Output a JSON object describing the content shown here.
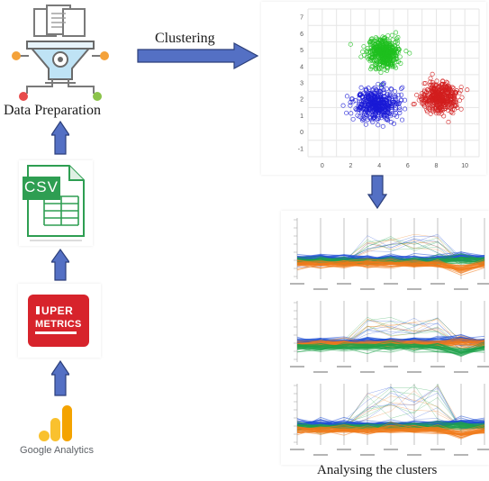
{
  "labels": {
    "data_preparation": "Data Preparation",
    "clustering": "Clustering",
    "analysing": "Analysing the clusters"
  },
  "sources": {
    "csv": "CSV",
    "supermetrics_line1": "UPER",
    "supermetrics_line2": "METRICS",
    "google_analytics": "Google Analytics"
  },
  "colors": {
    "arrow_fill": "#5470c4",
    "arrow_stroke": "#2c3f7a",
    "cluster_green": "#1fbf1f",
    "cluster_blue": "#1a1ad6",
    "cluster_red": "#d21e1e",
    "csv_green": "#2e9e52",
    "supermetrics_red": "#d7232b",
    "ga_orange": "#f4a300",
    "ga_yellow": "#f9c12e"
  },
  "icons": [
    "funnel-gear-icon",
    "csv-file-icon",
    "supermetrics-logo",
    "google-analytics-icon"
  ],
  "chart_data": {
    "type": "scatter",
    "xticks": [
      "0",
      "2",
      "4",
      "6",
      "8",
      "10"
    ],
    "yticks": [
      "7",
      "6",
      "5",
      "4",
      "3",
      "2",
      "1",
      "0",
      "-1"
    ],
    "xlim": [
      -1,
      11
    ],
    "ylim": [
      -1.5,
      7.5
    ],
    "clusters": [
      {
        "color": "green",
        "center": [
          4.3,
          4.8
        ],
        "spread": [
          1.0,
          0.8
        ]
      },
      {
        "color": "blue",
        "center": [
          3.8,
          1.7
        ],
        "spread": [
          1.3,
          0.9
        ]
      },
      {
        "color": "red",
        "center": [
          8.3,
          2.1
        ],
        "spread": [
          1.1,
          0.8
        ]
      }
    ]
  },
  "parallel_panels": [
    {
      "colors": [
        "#1f4fd6",
        "#1fa34a",
        "#f07a1a"
      ]
    },
    {
      "colors": [
        "#1f4fd6",
        "#f07a1a",
        "#1fa34a"
      ]
    },
    {
      "colors": [
        "#1f4fd6",
        "#1fa34a",
        "#f07a1a"
      ]
    }
  ]
}
